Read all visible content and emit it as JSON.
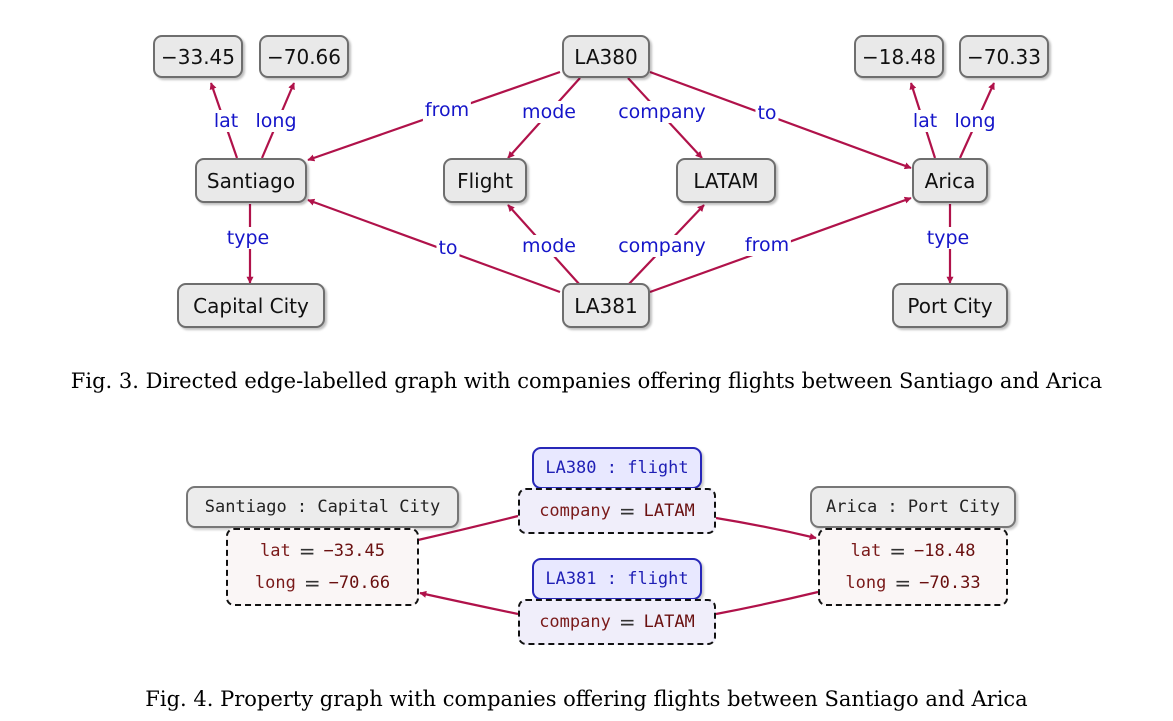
{
  "colors": {
    "edge": "#b0124a",
    "edge_label": "#1515c9",
    "node_border": "#6e6e6e"
  },
  "fig3": {
    "nodes": {
      "lat_santiago": "−33.45",
      "long_santiago": "−70.66",
      "la380": "LA380",
      "lat_arica": "−18.48",
      "long_arica": "−70.33",
      "santiago": "Santiago",
      "flight": "Flight",
      "latam": "LATAM",
      "arica": "Arica",
      "capital_city": "Capital City",
      "la381": "LA381",
      "port_city": "Port City"
    },
    "edges": {
      "santiago_lat": "lat",
      "santiago_long": "long",
      "arica_lat": "lat",
      "arica_long": "long",
      "la380_from": "from",
      "la380_mode": "mode",
      "la380_company": "company",
      "la380_to": "to",
      "santiago_type": "type",
      "arica_type": "type",
      "la381_to": "to",
      "la381_mode": "mode",
      "la381_company": "company",
      "la381_from": "from"
    },
    "caption": "Fig. 3.  Directed edge-labelled graph with companies offering flights between Santiago and Arica"
  },
  "fig4": {
    "santiago": {
      "label": "Santiago : Capital City",
      "props": [
        {
          "key": "lat",
          "value": "−33.45"
        },
        {
          "key": "long",
          "value": "−70.66"
        }
      ]
    },
    "arica": {
      "label": "Arica : Port City",
      "props": [
        {
          "key": "lat",
          "value": "−18.48"
        },
        {
          "key": "long",
          "value": "−70.33"
        }
      ]
    },
    "la380": {
      "label": "LA380 : flight",
      "props": [
        {
          "key": "company",
          "value": "LATAM"
        }
      ]
    },
    "la381": {
      "label": "LA381 : flight",
      "props": [
        {
          "key": "company",
          "value": "LATAM"
        }
      ]
    },
    "equals": "=",
    "caption": "Fig. 4.  Property graph with companies offering flights between Santiago and Arica"
  }
}
